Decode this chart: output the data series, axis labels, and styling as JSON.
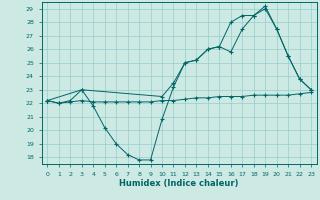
{
  "xlabel": "Humidex (Indice chaleur)",
  "bg_color": "#cce9e4",
  "grid_color": "#99cccc",
  "line_color": "#006666",
  "xlim": [
    -0.5,
    23.5
  ],
  "ylim": [
    17.5,
    29.5
  ],
  "yticks": [
    18,
    19,
    20,
    21,
    22,
    23,
    24,
    25,
    26,
    27,
    28,
    29
  ],
  "xticks": [
    0,
    1,
    2,
    3,
    4,
    5,
    6,
    7,
    8,
    9,
    10,
    11,
    12,
    13,
    14,
    15,
    16,
    17,
    18,
    19,
    20,
    21,
    22,
    23
  ],
  "series": [
    {
      "x": [
        0,
        1,
        2,
        3,
        4,
        5,
        6,
        7,
        8,
        9,
        10,
        11,
        12,
        13,
        14,
        15,
        16,
        17,
        18,
        19,
        20,
        21,
        22,
        23
      ],
      "y": [
        22.2,
        22.0,
        22.2,
        23.0,
        21.8,
        20.2,
        19.0,
        18.2,
        17.8,
        17.8,
        20.8,
        23.2,
        25.0,
        25.2,
        26.0,
        26.2,
        25.8,
        27.5,
        28.5,
        29.0,
        27.5,
        25.5,
        23.8,
        23.0
      ]
    },
    {
      "x": [
        0,
        1,
        2,
        3,
        4,
        5,
        6,
        7,
        8,
        9,
        10,
        11,
        12,
        13,
        14,
        15,
        16,
        17,
        18,
        19,
        20,
        21,
        22,
        23
      ],
      "y": [
        22.2,
        22.0,
        22.1,
        22.2,
        22.1,
        22.1,
        22.1,
        22.1,
        22.1,
        22.1,
        22.2,
        22.2,
        22.3,
        22.4,
        22.4,
        22.5,
        22.5,
        22.5,
        22.6,
        22.6,
        22.6,
        22.6,
        22.7,
        22.8
      ]
    },
    {
      "x": [
        0,
        3,
        10,
        11,
        12,
        13,
        14,
        15,
        16,
        17,
        18,
        19,
        20,
        21,
        22,
        23
      ],
      "y": [
        22.2,
        23.0,
        22.5,
        23.5,
        25.0,
        25.2,
        26.0,
        26.2,
        28.0,
        28.5,
        28.5,
        29.2,
        27.5,
        25.5,
        23.8,
        23.0
      ]
    }
  ]
}
